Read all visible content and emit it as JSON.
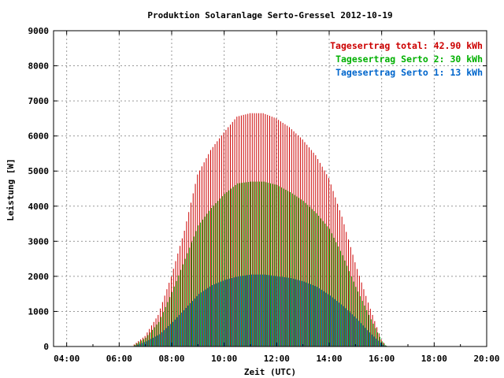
{
  "chart_data": {
    "type": "bar",
    "title": "Produktion Solaranlage Serto-Gressel 2012-10-19",
    "xlabel": "Zeit (UTC)",
    "ylabel": "Leistung [W]",
    "xlim": [
      3.5,
      20
    ],
    "ylim": [
      0,
      9000
    ],
    "x_ticks": [
      4,
      6,
      8,
      10,
      12,
      14,
      16,
      18,
      20
    ],
    "x_tick_labels": [
      "04:00",
      "06:00",
      "08:00",
      "10:00",
      "12:00",
      "14:00",
      "16:00",
      "18:00",
      "20:00"
    ],
    "y_ticks": [
      0,
      1000,
      2000,
      3000,
      4000,
      5000,
      6000,
      7000,
      8000,
      9000
    ],
    "y_tick_labels": [
      "0",
      "1000",
      "2000",
      "3000",
      "4000",
      "5000",
      "6000",
      "7000",
      "8000",
      "9000"
    ],
    "grid": true,
    "legend_position": "top-right",
    "bar_interval_minutes": 5,
    "series": [
      {
        "name": "Tagesertrag total: 42.90 kWh",
        "color": "#cc0000",
        "points": [
          [
            6.5,
            10
          ],
          [
            7.0,
            300
          ],
          [
            7.5,
            900
          ],
          [
            8.0,
            2000
          ],
          [
            8.5,
            3300
          ],
          [
            9.0,
            4900
          ],
          [
            9.5,
            5600
          ],
          [
            10.0,
            6100
          ],
          [
            10.5,
            6550
          ],
          [
            11.0,
            6650
          ],
          [
            11.5,
            6650
          ],
          [
            12.0,
            6500
          ],
          [
            12.5,
            6250
          ],
          [
            13.0,
            5900
          ],
          [
            13.5,
            5450
          ],
          [
            14.0,
            4800
          ],
          [
            14.5,
            3700
          ],
          [
            15.0,
            2400
          ],
          [
            15.5,
            1250
          ],
          [
            16.0,
            200
          ],
          [
            16.17,
            30
          ]
        ]
      },
      {
        "name": "Tagesertrag Serto 2: 30 kWh",
        "color": "#00b000",
        "points": [
          [
            6.5,
            10
          ],
          [
            7.0,
            250
          ],
          [
            7.5,
            700
          ],
          [
            8.0,
            1550
          ],
          [
            8.5,
            2500
          ],
          [
            9.0,
            3450
          ],
          [
            9.5,
            3950
          ],
          [
            10.0,
            4350
          ],
          [
            10.5,
            4650
          ],
          [
            11.0,
            4700
          ],
          [
            11.5,
            4700
          ],
          [
            12.0,
            4600
          ],
          [
            12.5,
            4400
          ],
          [
            13.0,
            4150
          ],
          [
            13.5,
            3800
          ],
          [
            14.0,
            3350
          ],
          [
            14.5,
            2600
          ],
          [
            15.0,
            1700
          ],
          [
            15.5,
            900
          ],
          [
            16.0,
            150
          ],
          [
            16.17,
            20
          ]
        ]
      },
      {
        "name": "Tagesertrag Serto 1: 13 kWh",
        "color": "#0066cc",
        "points": [
          [
            6.5,
            5
          ],
          [
            7.0,
            150
          ],
          [
            7.5,
            350
          ],
          [
            8.0,
            700
          ],
          [
            8.5,
            1100
          ],
          [
            9.0,
            1500
          ],
          [
            9.5,
            1750
          ],
          [
            10.0,
            1900
          ],
          [
            10.5,
            2000
          ],
          [
            11.0,
            2050
          ],
          [
            11.5,
            2050
          ],
          [
            12.0,
            2000
          ],
          [
            12.5,
            1950
          ],
          [
            13.0,
            1850
          ],
          [
            13.5,
            1700
          ],
          [
            14.0,
            1450
          ],
          [
            14.5,
            1150
          ],
          [
            15.0,
            800
          ],
          [
            15.5,
            400
          ],
          [
            16.0,
            50
          ],
          [
            16.17,
            10
          ]
        ]
      }
    ]
  }
}
